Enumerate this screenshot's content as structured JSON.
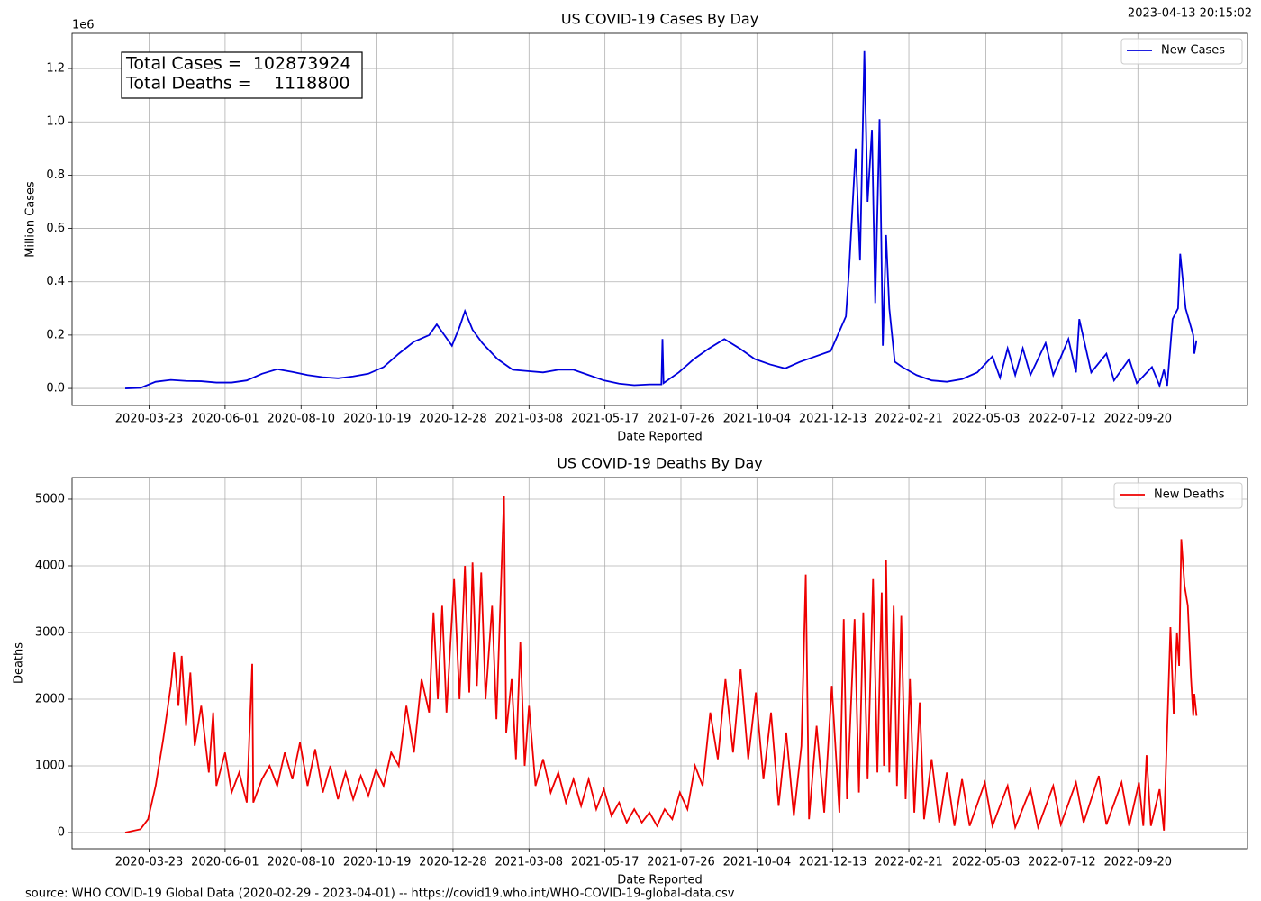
{
  "timestamp": "2023-04-13 20:15:02",
  "source": "source: WHO COVID-19 Global Data (2020-02-29 - 2023-04-01) -- https://covid19.who.int/WHO-COVID-19-global-data.csv",
  "chart_data": [
    {
      "type": "line",
      "title": "US COVID-19 Cases By Day",
      "x_label": "Date Reported",
      "y_label": "Million Cases",
      "y_offset_label": "1e6",
      "annotation": [
        "Total Cases =  102873924",
        "Total Deaths =    1118800"
      ],
      "legend": "upper right",
      "grid": true,
      "xlim": [
        "2020-01-12",
        "2022-12-30"
      ],
      "xticks": [
        "2020-03-23",
        "2020-06-01",
        "2020-08-10",
        "2020-10-19",
        "2020-12-28",
        "2021-03-08",
        "2021-05-17",
        "2021-07-26",
        "2021-10-04",
        "2021-12-13",
        "2022-02-21",
        "2022-05-03",
        "2022-07-12",
        "2022-09-20"
      ],
      "ylim": [
        -64000,
        1332000
      ],
      "yticks": [
        {
          "value": 0,
          "label": "0.0"
        },
        {
          "value": 200000,
          "label": "0.2"
        },
        {
          "value": 400000,
          "label": "0.4"
        },
        {
          "value": 600000,
          "label": "0.6"
        },
        {
          "value": 800000,
          "label": "0.8"
        },
        {
          "value": 1000000,
          "label": "1.0"
        },
        {
          "value": 1200000,
          "label": "1.2"
        }
      ],
      "x": [
        "2020-03-01",
        "2020-03-15",
        "2020-03-29",
        "2020-04-12",
        "2020-04-26",
        "2020-05-10",
        "2020-05-24",
        "2020-06-07",
        "2020-06-21",
        "2020-07-05",
        "2020-07-19",
        "2020-08-02",
        "2020-08-16",
        "2020-08-30",
        "2020-09-13",
        "2020-09-27",
        "2020-10-11",
        "2020-10-25",
        "2020-11-08",
        "2020-11-22",
        "2020-12-06",
        "2020-12-13",
        "2020-12-20",
        "2020-12-27",
        "2021-01-03",
        "2021-01-08",
        "2021-01-15",
        "2021-01-24",
        "2021-02-07",
        "2021-02-21",
        "2021-03-07",
        "2021-03-21",
        "2021-04-04",
        "2021-04-18",
        "2021-05-02",
        "2021-05-16",
        "2021-05-30",
        "2021-06-13",
        "2021-06-27",
        "2021-07-08",
        "2021-07-09",
        "2021-07-10",
        "2021-07-24",
        "2021-08-07",
        "2021-08-21",
        "2021-09-04",
        "2021-09-18",
        "2021-10-02",
        "2021-10-16",
        "2021-10-30",
        "2021-11-13",
        "2021-11-27",
        "2021-12-11",
        "2021-12-25",
        "2021-12-28",
        "2022-01-03",
        "2022-01-07",
        "2022-01-11",
        "2022-01-14",
        "2022-01-18",
        "2022-01-21",
        "2022-01-25",
        "2022-01-28",
        "2022-01-31",
        "2022-02-03",
        "2022-02-08",
        "2022-02-15",
        "2022-02-28",
        "2022-03-14",
        "2022-03-28",
        "2022-04-11",
        "2022-04-25",
        "2022-05-09",
        "2022-05-16",
        "2022-05-23",
        "2022-05-30",
        "2022-06-06",
        "2022-06-13",
        "2022-06-27",
        "2022-07-04",
        "2022-07-18",
        "2022-07-25",
        "2022-07-28",
        "2022-08-08",
        "2022-08-22",
        "2022-08-29",
        "2022-09-12",
        "2022-09-19",
        "2022-10-03",
        "2022-10-10",
        "2022-10-14",
        "2022-10-17",
        "2022-10-22",
        "2022-10-27",
        "2022-10-29",
        "2022-11-03",
        "2022-11-10",
        "2022-11-11",
        "2022-11-13"
      ],
      "series": [
        {
          "name": "New Cases",
          "color": "#0000dd",
          "values": [
            0,
            2000,
            25000,
            32000,
            28000,
            27000,
            22000,
            22000,
            30000,
            55000,
            72000,
            62000,
            50000,
            42000,
            38000,
            45000,
            55000,
            80000,
            130000,
            175000,
            200000,
            240000,
            200000,
            160000,
            230000,
            290000,
            220000,
            170000,
            110000,
            70000,
            65000,
            60000,
            70000,
            70000,
            50000,
            30000,
            18000,
            12000,
            15000,
            15000,
            185000,
            20000,
            60000,
            110000,
            150000,
            185000,
            150000,
            110000,
            90000,
            75000,
            100000,
            120000,
            140000,
            270000,
            450000,
            900000,
            480000,
            1265000,
            700000,
            970000,
            320000,
            1010000,
            160000,
            575000,
            300000,
            100000,
            80000,
            50000,
            30000,
            25000,
            35000,
            60000,
            120000,
            40000,
            150000,
            50000,
            150000,
            50000,
            170000,
            50000,
            185000,
            60000,
            260000,
            60000,
            130000,
            30000,
            110000,
            20000,
            80000,
            10000,
            70000,
            10000,
            260000,
            300000,
            505000,
            300000,
            200000,
            130000,
            180000
          ]
        }
      ]
    },
    {
      "type": "line",
      "title": "US COVID-19 Deaths By Day",
      "x_label": "Date Reported",
      "y_label": "Deaths",
      "legend": "upper right",
      "grid": true,
      "xlim": [
        "2020-01-12",
        "2022-12-30"
      ],
      "xticks": [
        "2020-03-23",
        "2020-06-01",
        "2020-08-10",
        "2020-10-19",
        "2020-12-28",
        "2021-03-08",
        "2021-05-17",
        "2021-07-26",
        "2021-10-04",
        "2021-12-13",
        "2022-02-21",
        "2022-05-03",
        "2022-07-12",
        "2022-09-20"
      ],
      "ylim": [
        -243,
        5324
      ],
      "yticks": [
        0,
        1000,
        2000,
        3000,
        4000,
        5000
      ],
      "x": [
        "2020-03-01",
        "2020-03-15",
        "2020-03-22",
        "2020-03-29",
        "2020-04-05",
        "2020-04-12",
        "2020-04-15",
        "2020-04-19",
        "2020-04-22",
        "2020-04-26",
        "2020-04-30",
        "2020-05-04",
        "2020-05-10",
        "2020-05-17",
        "2020-05-21",
        "2020-05-24",
        "2020-06-01",
        "2020-06-07",
        "2020-06-14",
        "2020-06-21",
        "2020-06-26",
        "2020-06-27",
        "2020-07-05",
        "2020-07-12",
        "2020-07-19",
        "2020-07-26",
        "2020-08-02",
        "2020-08-09",
        "2020-08-16",
        "2020-08-23",
        "2020-08-30",
        "2020-09-06",
        "2020-09-13",
        "2020-09-20",
        "2020-09-27",
        "2020-10-04",
        "2020-10-11",
        "2020-10-18",
        "2020-10-25",
        "2020-11-01",
        "2020-11-08",
        "2020-11-15",
        "2020-11-22",
        "2020-11-29",
        "2020-12-06",
        "2020-12-10",
        "2020-12-14",
        "2020-12-18",
        "2020-12-22",
        "2020-12-29",
        "2021-01-03",
        "2021-01-08",
        "2021-01-12",
        "2021-01-15",
        "2021-01-19",
        "2021-01-23",
        "2021-01-27",
        "2021-02-02",
        "2021-02-06",
        "2021-02-13",
        "2021-02-15",
        "2021-02-20",
        "2021-02-24",
        "2021-02-28",
        "2021-03-04",
        "2021-03-08",
        "2021-03-14",
        "2021-03-21",
        "2021-03-28",
        "2021-04-04",
        "2021-04-11",
        "2021-04-18",
        "2021-04-25",
        "2021-05-02",
        "2021-05-09",
        "2021-05-16",
        "2021-05-23",
        "2021-05-30",
        "2021-06-06",
        "2021-06-13",
        "2021-06-20",
        "2021-06-27",
        "2021-07-04",
        "2021-07-11",
        "2021-07-18",
        "2021-07-25",
        "2021-08-01",
        "2021-08-08",
        "2021-08-15",
        "2021-08-22",
        "2021-08-29",
        "2021-09-05",
        "2021-09-12",
        "2021-09-19",
        "2021-09-26",
        "2021-10-03",
        "2021-10-10",
        "2021-10-17",
        "2021-10-24",
        "2021-10-31",
        "2021-11-07",
        "2021-11-14",
        "2021-11-18",
        "2021-11-21",
        "2021-11-28",
        "2021-12-05",
        "2021-12-12",
        "2021-12-19",
        "2021-12-23",
        "2021-12-26",
        "2022-01-02",
        "2022-01-06",
        "2022-01-10",
        "2022-01-14",
        "2022-01-19",
        "2022-01-23",
        "2022-01-27",
        "2022-01-29",
        "2022-01-31",
        "2022-02-03",
        "2022-02-07",
        "2022-02-10",
        "2022-02-14",
        "2022-02-18",
        "2022-02-22",
        "2022-02-26",
        "2022-03-03",
        "2022-03-07",
        "2022-03-14",
        "2022-03-21",
        "2022-03-28",
        "2022-04-04",
        "2022-04-11",
        "2022-04-18",
        "2022-05-02",
        "2022-05-09",
        "2022-05-23",
        "2022-05-30",
        "2022-06-13",
        "2022-06-20",
        "2022-07-04",
        "2022-07-11",
        "2022-07-25",
        "2022-08-01",
        "2022-08-15",
        "2022-08-22",
        "2022-09-05",
        "2022-09-12",
        "2022-09-21",
        "2022-09-25",
        "2022-09-28",
        "2022-10-02",
        "2022-10-10",
        "2022-10-14",
        "2022-10-20",
        "2022-10-23",
        "2022-10-26",
        "2022-10-28",
        "2022-10-30",
        "2022-11-02",
        "2022-11-05",
        "2022-11-08",
        "2022-11-10",
        "2022-11-11",
        "2022-11-13"
      ],
      "series": [
        {
          "name": "New Deaths",
          "color": "#ee0000",
          "values": [
            0,
            50,
            200,
            700,
            1400,
            2200,
            2700,
            1900,
            2650,
            1600,
            2400,
            1300,
            1900,
            900,
            1800,
            700,
            1200,
            600,
            900,
            450,
            2530,
            450,
            800,
            1000,
            700,
            1200,
            800,
            1350,
            700,
            1250,
            600,
            1000,
            500,
            900,
            500,
            850,
            550,
            950,
            700,
            1200,
            1000,
            1900,
            1200,
            2300,
            1800,
            3300,
            2000,
            3400,
            1800,
            3800,
            2000,
            4000,
            2100,
            4050,
            2200,
            3900,
            2000,
            3400,
            1700,
            5050,
            1500,
            2300,
            1100,
            2850,
            1000,
            1900,
            700,
            1100,
            600,
            900,
            450,
            800,
            400,
            800,
            350,
            650,
            250,
            450,
            150,
            350,
            150,
            300,
            100,
            350,
            200,
            600,
            350,
            1000,
            700,
            1800,
            1100,
            2300,
            1200,
            2450,
            1100,
            2100,
            800,
            1800,
            400,
            1500,
            250,
            1300,
            3870,
            200,
            1600,
            300,
            2200,
            300,
            3200,
            500,
            3200,
            600,
            3300,
            800,
            3800,
            900,
            3600,
            1000,
            4080,
            900,
            3400,
            700,
            3250,
            500,
            2300,
            300,
            1950,
            200,
            1100,
            150,
            900,
            100,
            800,
            100,
            750,
            100,
            700,
            80,
            650,
            80,
            700,
            120,
            750,
            150,
            850,
            120,
            750,
            100,
            750,
            100,
            1160,
            100,
            650,
            30,
            3080,
            1770,
            3000,
            2500,
            4400,
            3700,
            3400,
            2300,
            1750,
            2080,
            1750
          ]
        }
      ]
    }
  ]
}
